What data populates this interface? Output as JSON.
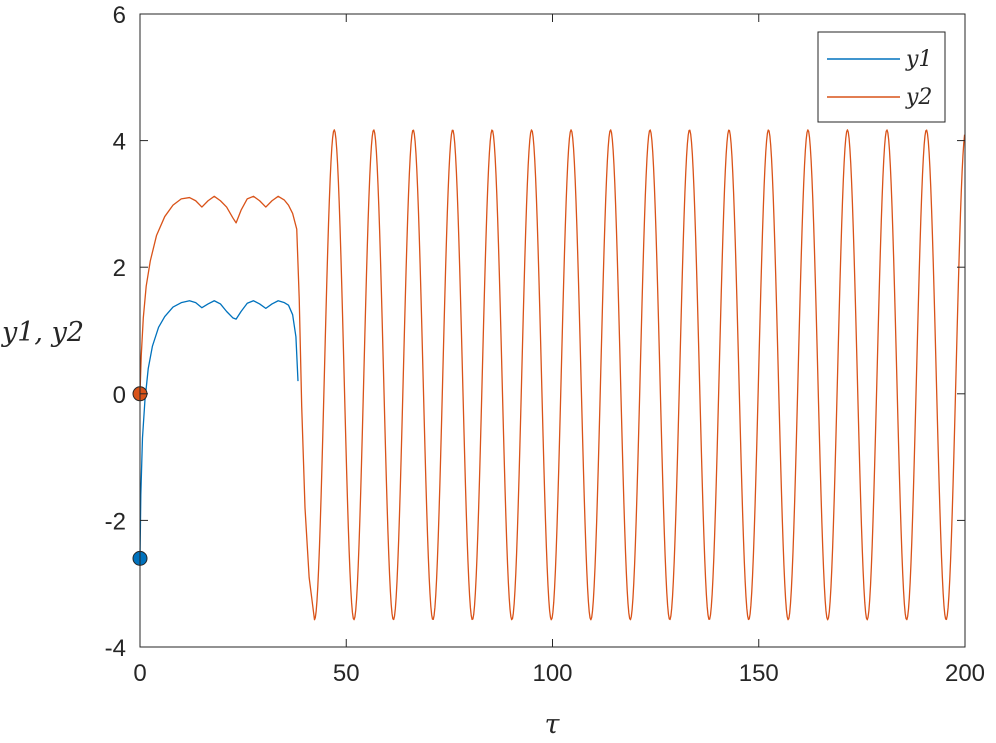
{
  "chart_data": {
    "type": "line",
    "title": "",
    "xlabel": "τ",
    "ylabel": "y1, y2",
    "xlim": [
      0,
      200
    ],
    "ylim": [
      -4,
      6
    ],
    "xticks": [
      0,
      50,
      100,
      150,
      200
    ],
    "yticks": [
      -4,
      -2,
      0,
      2,
      4,
      6
    ],
    "xtick_labels": [
      "0",
      "50",
      "100",
      "150",
      "200"
    ],
    "ytick_labels": [
      "-4",
      "-2",
      "0",
      "2",
      "4",
      "6"
    ],
    "grid": false,
    "legend_position": "top-right",
    "series": [
      {
        "name": "y1",
        "color": "#0072BD",
        "x": [
          0,
          0.2,
          0.6,
          1.2,
          2,
          3,
          4.5,
          6,
          8,
          10,
          12,
          13.5,
          15,
          16.5,
          18,
          19.5,
          21,
          22.5,
          23.3,
          24.5,
          26,
          27.5,
          29,
          30.5,
          32,
          33.5,
          35,
          36,
          37,
          37.8,
          38.3
        ],
        "y": [
          -2.6,
          -1.6,
          -0.7,
          -0.1,
          0.4,
          0.75,
          1.05,
          1.22,
          1.37,
          1.44,
          1.47,
          1.44,
          1.36,
          1.42,
          1.47,
          1.42,
          1.3,
          1.2,
          1.18,
          1.3,
          1.43,
          1.47,
          1.42,
          1.35,
          1.42,
          1.47,
          1.44,
          1.4,
          1.25,
          0.9,
          0.2
        ],
        "initial_marker": [
          0,
          -2.6
        ]
      },
      {
        "name": "y2",
        "color": "#D95319",
        "x": [
          0,
          0.3,
          0.8,
          1.5,
          2.5,
          4,
          6,
          8,
          10,
          12,
          13.5,
          15,
          16.5,
          18,
          19.5,
          21,
          22.5,
          23.3,
          24.5,
          26,
          27.5,
          29,
          30.5,
          32,
          33.5,
          35,
          36,
          37,
          38,
          38.6,
          39.2,
          40,
          41,
          42.3
        ],
        "y": [
          0,
          0.6,
          1.2,
          1.7,
          2.1,
          2.5,
          2.8,
          2.98,
          3.08,
          3.1,
          3.05,
          2.95,
          3.05,
          3.12,
          3.05,
          2.95,
          2.78,
          2.7,
          2.9,
          3.08,
          3.12,
          3.05,
          2.95,
          3.05,
          3.12,
          3.06,
          2.98,
          2.85,
          2.6,
          1.5,
          -0.2,
          -1.8,
          -2.9,
          -3.57
        ],
        "initial_marker": [
          0,
          0
        ],
        "oscillation": {
          "start": 42.3,
          "end": 200,
          "period": 9.57,
          "min": -3.57,
          "max": 4.17
        }
      }
    ],
    "legend": [
      "y1",
      "y2"
    ]
  }
}
